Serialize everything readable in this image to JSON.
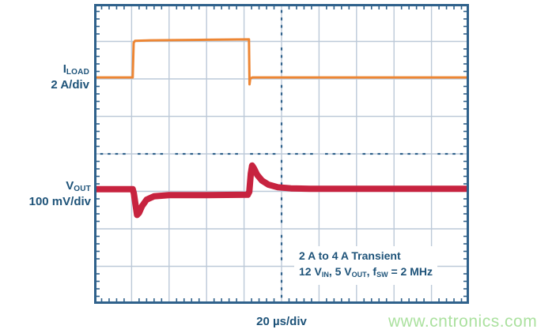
{
  "colors": {
    "text_navy": "#1e5379",
    "grid_line": "#bcc9d8",
    "grid_border": "#2f618b",
    "trace_orange": "#ed8634",
    "trace_red": "#c7233f",
    "watermark_green": "#abe19f",
    "background": "#ffffff"
  },
  "channel_labels": [
    {
      "main": "I",
      "sub": "LOAD",
      "scale": "2 A/div"
    },
    {
      "main": "V",
      "sub": "OUT",
      "scale": "100 mV/div"
    }
  ],
  "annotation": {
    "line1": "2 A to 4 A Transient",
    "line2_parts": [
      {
        "t": "12 V",
        "s": "IN"
      },
      {
        "t": ", 5 V",
        "s": "OUT"
      },
      {
        "t": ", f",
        "s": "SW"
      },
      {
        "t": " = 2 MHz",
        "s": ""
      }
    ]
  },
  "xaxis": {
    "label": "20 µs/div"
  },
  "watermark": {
    "text": "www.cntronics.com"
  },
  "chart_data": {
    "type": "line",
    "title": "2 A to 4 A load transient response, 12 VIN, 5 VOUT, fSW = 2 MHz",
    "xlabel": "20 µs/div",
    "x_unit": "µs",
    "x_per_div": 20,
    "x_range": [
      0,
      200
    ],
    "divisions": {
      "x": 10,
      "y": 8
    },
    "grid": "oscilloscope 10x8 divisions, dotted center axes, tick marks on frame",
    "legend_position": "left-of-plot channel labels",
    "series": [
      {
        "name": "ILOAD",
        "units": "A",
        "scale_per_div": 2,
        "baseline_value": 2,
        "baseline_div": 1.96,
        "color": "#ed8634",
        "stroke_px": 3,
        "description": "Load current step from 2 A to 4 A at t=21 µs, back to 2 A at t=83 µs with brief undershoot",
        "points": [
          [
            0,
            2
          ],
          [
            20.6,
            2
          ],
          [
            21.1,
            3.85
          ],
          [
            21.8,
            3.95
          ],
          [
            30,
            3.98
          ],
          [
            60,
            4.01
          ],
          [
            82.2,
            4.03
          ],
          [
            82.6,
            4.03
          ],
          [
            82.9,
            1.63
          ],
          [
            83.3,
            1.94
          ],
          [
            84.5,
            2.0
          ],
          [
            200,
            2.0
          ]
        ]
      },
      {
        "name": "VOUT",
        "units": "mV deviation",
        "scale_per_div": 100,
        "baseline_value": 0,
        "baseline_div": 4.95,
        "color": "#c7233f",
        "stroke_px": 8,
        "description": "Output voltage: ~68 mV dip at load step-up, ~64 mV overshoot at load release, ~15 mV droop while loaded",
        "points": [
          [
            0,
            1
          ],
          [
            20.6,
            1
          ],
          [
            21.2,
            -10
          ],
          [
            22.9,
            -68
          ],
          [
            24,
            -62
          ],
          [
            25.5,
            -45
          ],
          [
            28,
            -27
          ],
          [
            32,
            -18
          ],
          [
            40,
            -15
          ],
          [
            60,
            -15
          ],
          [
            82,
            -14
          ],
          [
            82.8,
            -6
          ],
          [
            83.6,
            42
          ],
          [
            84.3,
            64
          ],
          [
            85.3,
            56
          ],
          [
            87,
            39
          ],
          [
            89.5,
            24
          ],
          [
            93,
            13
          ],
          [
            98,
            6
          ],
          [
            105,
            3
          ],
          [
            115,
            2
          ],
          [
            200,
            2
          ]
        ]
      }
    ],
    "annotations": [
      "2 A to 4 A Transient",
      "12 VIN, 5 VOUT, fSW = 2 MHz"
    ]
  }
}
